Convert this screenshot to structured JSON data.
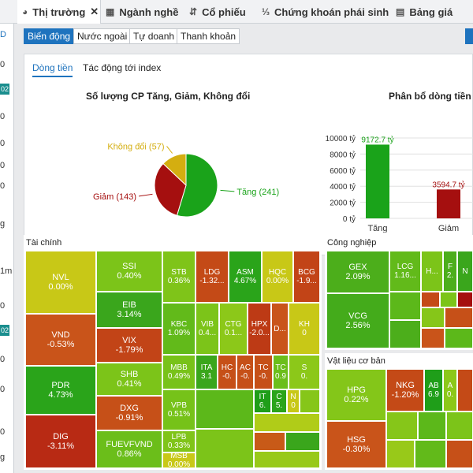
{
  "tabs": [
    {
      "label": "Thị trường",
      "icon": "pie-icon",
      "glyph": "◕"
    },
    {
      "label": "Ngành nghề",
      "icon": "table-icon",
      "glyph": "▦"
    },
    {
      "label": "Cổ phiếu",
      "icon": "sort-icon",
      "glyph": "⇵"
    },
    {
      "label": "Chứng khoán phái sinh",
      "icon": "numbered-list-icon",
      "glyph": "⅓"
    },
    {
      "label": "Bảng giá",
      "icon": "board-icon",
      "glyph": "▤"
    }
  ],
  "tab_close": "✕",
  "left_strip": {
    "items": [
      "D",
      "0",
      "02",
      "0",
      "0",
      "0",
      "0",
      "g",
      "1m",
      "0",
      "02",
      "0",
      "0",
      "0",
      "g"
    ]
  },
  "sub_tabs": [
    "Biến động",
    "Nước ngoài",
    "Tự doanh",
    "Thanh khoản"
  ],
  "content_tabs": [
    "Dòng tiền",
    "Tác động tới index"
  ],
  "pie_title": "Số lượng CP Tăng, Giảm, Không đổi",
  "bar_title": "Phân bổ dòng tiền",
  "colors": {
    "up": "#1aa31a",
    "down": "#a50f0f",
    "flat": "#d4ae10",
    "accent": "#1e73be"
  },
  "chart_data": [
    {
      "type": "pie",
      "title": "Số lượng CP Tăng, Giảm, Không đổi",
      "labels": [
        "Tăng",
        "Giảm",
        "Không đổi"
      ],
      "values": [
        241,
        143,
        57
      ],
      "label_texts": [
        "Tăng (241)",
        "Giảm (143)",
        "Không đổi (57)"
      ]
    },
    {
      "type": "bar",
      "title": "Phân bổ dòng tiền",
      "categories": [
        "Tăng",
        "Giảm"
      ],
      "values": [
        9172.7,
        3594.7
      ],
      "value_labels": [
        "9172.7 tỷ",
        "3594.7 tỷ"
      ],
      "ylim": [
        0,
        10000
      ],
      "yticks": [
        "0 tỷ",
        "2000 tỷ",
        "4000 tỷ",
        "6000 tỷ",
        "8000 tỷ",
        "10000 tỷ"
      ],
      "grid": true
    }
  ],
  "treemap": {
    "sectors": [
      "Tài chính",
      "Công nghiệp",
      "Vật liệu cơ bản"
    ],
    "tai_chinh": [
      {
        "s": "NVL",
        "v": "0.00%",
        "c": "#c8c817"
      },
      {
        "s": "VND",
        "v": "-0.53%",
        "c": "#c9541a"
      },
      {
        "s": "PDR",
        "v": "4.73%",
        "c": "#2aa41a"
      },
      {
        "s": "DIG",
        "v": "-3.11%",
        "c": "#b82a14"
      },
      {
        "s": "SSI",
        "v": "0.40%",
        "c": "#7cc419"
      },
      {
        "s": "EIB",
        "v": "3.14%",
        "c": "#3aa61c"
      },
      {
        "s": "VIX",
        "v": "-1.79%",
        "c": "#c24417"
      },
      {
        "s": "SHB",
        "v": "0.41%",
        "c": "#7cc419"
      },
      {
        "s": "DXG",
        "v": "-0.91%",
        "c": "#c65018"
      },
      {
        "s": "FUEVFVND",
        "v": "0.86%",
        "c": "#6bbe1a"
      },
      {
        "s": "STB",
        "v": "0.36%",
        "c": "#7fc419"
      },
      {
        "s": "LDG",
        "v": "-1.32...",
        "c": "#c44a17"
      },
      {
        "s": "ASM",
        "v": "4.67%",
        "c": "#2aa41a"
      },
      {
        "s": "HQC",
        "v": "0.00%",
        "c": "#c8c817"
      },
      {
        "s": "BCG",
        "v": "-1.9...",
        "c": "#c24417"
      },
      {
        "s": "KBC",
        "v": "1.09%",
        "c": "#62ba1a"
      },
      {
        "s": "VIB",
        "v": "0.4...",
        "c": "#7cc419"
      },
      {
        "s": "CTG",
        "v": "0.1...",
        "c": "#8cc819"
      },
      {
        "s": "HPX",
        "v": "-2.0...",
        "c": "#bd3a15"
      },
      {
        "s": "D...",
        "v": "",
        "c": "#c9541a"
      },
      {
        "s": "KH",
        "v": "0",
        "c": "#c8c817"
      },
      {
        "s": "MBB",
        "v": "0.49%",
        "c": "#78c219"
      },
      {
        "s": "ITA",
        "v": "3.1",
        "c": "#3aa61c"
      },
      {
        "s": "HC",
        "v": "-0.",
        "c": "#c65018"
      },
      {
        "s": "AC",
        "v": "-0.",
        "c": "#c65018"
      },
      {
        "s": "TC",
        "v": "-0.",
        "c": "#c65018"
      },
      {
        "s": "TC",
        "v": "0.9",
        "c": "#6bbe1a"
      },
      {
        "s": "S",
        "v": "0.",
        "c": "#8cc819"
      },
      {
        "s": "VPB",
        "v": "0.51%",
        "c": "#76c219"
      },
      {
        "s": "IT",
        "v": "6.",
        "c": "#1f9e19"
      },
      {
        "s": "C",
        "v": "5.",
        "c": "#2aa41a"
      },
      {
        "s": "N",
        "v": "0",
        "c": "#c8c817"
      },
      {
        "s": "LPB",
        "v": "0.33%",
        "c": "#80c419"
      },
      {
        "s": "MSB",
        "v": "0.00%",
        "c": "#c8c817"
      }
    ],
    "cong_nghiep": [
      {
        "s": "GEX",
        "v": "2.09%",
        "c": "#4cae1b"
      },
      {
        "s": "VCG",
        "v": "2.56%",
        "c": "#44ab1b"
      },
      {
        "s": "LCG",
        "v": "1.16...",
        "c": "#62ba1a"
      },
      {
        "s": "H...",
        "v": "",
        "c": "#7cc419"
      },
      {
        "s": "F",
        "v": "2.",
        "c": "#4cae1b"
      },
      {
        "s": "N",
        "v": "",
        "c": "#3aa61c"
      }
    ],
    "vat_lieu": [
      {
        "s": "HPG",
        "v": "0.22%",
        "c": "#84c619"
      },
      {
        "s": "HSG",
        "v": "-0.30%",
        "c": "#c9541a"
      },
      {
        "s": "NKG",
        "v": "-1.20%",
        "c": "#c44a17"
      },
      {
        "s": "AB",
        "v": "6.9",
        "c": "#1f9e19"
      },
      {
        "s": "A",
        "v": "0.",
        "c": "#8cc819"
      }
    ]
  }
}
